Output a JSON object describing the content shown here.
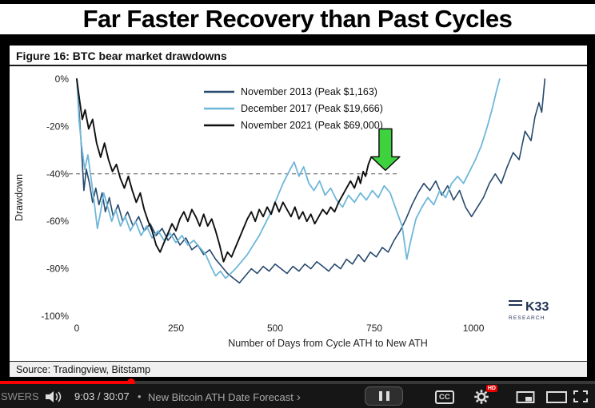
{
  "banner": {
    "title": "Far Faster Recovery than Past Cycles"
  },
  "figure": {
    "heading": "Figure 16: BTC bear market drawdowns",
    "source": "Source: Tradingview, Bitstamp",
    "logo_line1": "K33",
    "logo_line2": "RESEARCH"
  },
  "chart_data": {
    "type": "line",
    "title": "BTC bear market drawdowns",
    "xlabel": "Number of Days from Cycle ATH to New ATH",
    "ylabel": "Drawdown",
    "xlim": [
      0,
      1266
    ],
    "ylim": [
      -100,
      0
    ],
    "x_ticks": [
      0,
      250,
      500,
      750,
      1000
    ],
    "y_ticks": [
      0,
      -20,
      -40,
      -60,
      -80,
      -100
    ],
    "y_tick_suffix": "%",
    "grid": false,
    "legend_position": "top-center",
    "series": [
      {
        "name": "November 2013 (Peak $1,163)",
        "color": "#27496d",
        "width": 1.6,
        "points": [
          [
            0,
            0
          ],
          [
            6,
            -14
          ],
          [
            12,
            -30
          ],
          [
            18,
            -47
          ],
          [
            24,
            -38
          ],
          [
            32,
            -44
          ],
          [
            40,
            -52
          ],
          [
            48,
            -46
          ],
          [
            56,
            -53
          ],
          [
            64,
            -48
          ],
          [
            72,
            -56
          ],
          [
            82,
            -50
          ],
          [
            92,
            -58
          ],
          [
            104,
            -53
          ],
          [
            116,
            -60
          ],
          [
            128,
            -56
          ],
          [
            142,
            -62
          ],
          [
            156,
            -58
          ],
          [
            170,
            -64
          ],
          [
            185,
            -61
          ],
          [
            200,
            -66
          ],
          [
            215,
            -63
          ],
          [
            230,
            -68
          ],
          [
            245,
            -65
          ],
          [
            260,
            -70
          ],
          [
            275,
            -67
          ],
          [
            290,
            -72
          ],
          [
            305,
            -70
          ],
          [
            320,
            -74
          ],
          [
            335,
            -72
          ],
          [
            350,
            -76
          ],
          [
            365,
            -79
          ],
          [
            380,
            -82
          ],
          [
            395,
            -84
          ],
          [
            410,
            -86
          ],
          [
            425,
            -83
          ],
          [
            440,
            -80
          ],
          [
            455,
            -82
          ],
          [
            470,
            -79
          ],
          [
            485,
            -81
          ],
          [
            500,
            -78
          ],
          [
            515,
            -80
          ],
          [
            530,
            -82
          ],
          [
            545,
            -79
          ],
          [
            560,
            -81
          ],
          [
            575,
            -78
          ],
          [
            590,
            -80
          ],
          [
            605,
            -77
          ],
          [
            620,
            -79
          ],
          [
            635,
            -81
          ],
          [
            650,
            -78
          ],
          [
            665,
            -80
          ],
          [
            680,
            -76
          ],
          [
            695,
            -78
          ],
          [
            710,
            -74
          ],
          [
            725,
            -77
          ],
          [
            740,
            -73
          ],
          [
            755,
            -75
          ],
          [
            770,
            -71
          ],
          [
            785,
            -73
          ],
          [
            800,
            -68
          ],
          [
            815,
            -64
          ],
          [
            830,
            -59
          ],
          [
            845,
            -53
          ],
          [
            860,
            -48
          ],
          [
            875,
            -44
          ],
          [
            890,
            -47
          ],
          [
            905,
            -43
          ],
          [
            920,
            -49
          ],
          [
            935,
            -45
          ],
          [
            950,
            -51
          ],
          [
            965,
            -47
          ],
          [
            980,
            -54
          ],
          [
            995,
            -58
          ],
          [
            1010,
            -54
          ],
          [
            1025,
            -50
          ],
          [
            1040,
            -44
          ],
          [
            1055,
            -40
          ],
          [
            1070,
            -44
          ],
          [
            1085,
            -37
          ],
          [
            1100,
            -31
          ],
          [
            1115,
            -34
          ],
          [
            1130,
            -22
          ],
          [
            1145,
            -26
          ],
          [
            1155,
            -16
          ],
          [
            1165,
            -10
          ],
          [
            1172,
            -14
          ],
          [
            1180,
            0
          ]
        ]
      },
      {
        "name": "December 2017 (Peak $19,666)",
        "color": "#6fb7d9",
        "width": 1.8,
        "points": [
          [
            0,
            0
          ],
          [
            6,
            -18
          ],
          [
            12,
            -28
          ],
          [
            20,
            -38
          ],
          [
            28,
            -32
          ],
          [
            36,
            -42
          ],
          [
            44,
            -52
          ],
          [
            52,
            -63
          ],
          [
            60,
            -56
          ],
          [
            68,
            -48
          ],
          [
            78,
            -54
          ],
          [
            88,
            -60
          ],
          [
            98,
            -55
          ],
          [
            110,
            -62
          ],
          [
            122,
            -58
          ],
          [
            135,
            -64
          ],
          [
            148,
            -60
          ],
          [
            162,
            -66
          ],
          [
            176,
            -62
          ],
          [
            190,
            -67
          ],
          [
            205,
            -64
          ],
          [
            220,
            -68
          ],
          [
            235,
            -65
          ],
          [
            250,
            -69
          ],
          [
            265,
            -66
          ],
          [
            280,
            -70
          ],
          [
            295,
            -68
          ],
          [
            310,
            -71
          ],
          [
            325,
            -74
          ],
          [
            338,
            -79
          ],
          [
            350,
            -83
          ],
          [
            362,
            -81
          ],
          [
            375,
            -84
          ],
          [
            388,
            -82
          ],
          [
            400,
            -80
          ],
          [
            415,
            -77
          ],
          [
            430,
            -74
          ],
          [
            445,
            -70
          ],
          [
            460,
            -66
          ],
          [
            475,
            -61
          ],
          [
            490,
            -56
          ],
          [
            505,
            -50
          ],
          [
            520,
            -44
          ],
          [
            535,
            -39
          ],
          [
            548,
            -35
          ],
          [
            560,
            -41
          ],
          [
            572,
            -37
          ],
          [
            585,
            -44
          ],
          [
            598,
            -47
          ],
          [
            612,
            -43
          ],
          [
            626,
            -49
          ],
          [
            640,
            -46
          ],
          [
            655,
            -51
          ],
          [
            670,
            -54
          ],
          [
            685,
            -49
          ],
          [
            700,
            -52
          ],
          [
            715,
            -48
          ],
          [
            730,
            -51
          ],
          [
            745,
            -47
          ],
          [
            760,
            -50
          ],
          [
            775,
            -45
          ],
          [
            790,
            -48
          ],
          [
            805,
            -55
          ],
          [
            820,
            -62
          ],
          [
            832,
            -76
          ],
          [
            842,
            -68
          ],
          [
            855,
            -59
          ],
          [
            870,
            -54
          ],
          [
            885,
            -50
          ],
          [
            900,
            -53
          ],
          [
            915,
            -47
          ],
          [
            930,
            -50
          ],
          [
            945,
            -44
          ],
          [
            960,
            -41
          ],
          [
            975,
            -44
          ],
          [
            990,
            -39
          ],
          [
            1005,
            -34
          ],
          [
            1020,
            -28
          ],
          [
            1035,
            -20
          ],
          [
            1048,
            -12
          ],
          [
            1058,
            -5
          ],
          [
            1066,
            0
          ]
        ]
      },
      {
        "name": "November 2021 (Peak $69,000)",
        "color": "#0f0f0f",
        "width": 1.9,
        "points": [
          [
            0,
            0
          ],
          [
            7,
            -9
          ],
          [
            14,
            -17
          ],
          [
            21,
            -13
          ],
          [
            30,
            -21
          ],
          [
            40,
            -17
          ],
          [
            50,
            -27
          ],
          [
            60,
            -33
          ],
          [
            70,
            -27
          ],
          [
            80,
            -34
          ],
          [
            90,
            -39
          ],
          [
            100,
            -36
          ],
          [
            110,
            -42
          ],
          [
            120,
            -46
          ],
          [
            130,
            -41
          ],
          [
            140,
            -47
          ],
          [
            150,
            -52
          ],
          [
            160,
            -48
          ],
          [
            170,
            -55
          ],
          [
            180,
            -60
          ],
          [
            190,
            -64
          ],
          [
            200,
            -70
          ],
          [
            210,
            -73
          ],
          [
            220,
            -69
          ],
          [
            230,
            -65
          ],
          [
            240,
            -61
          ],
          [
            250,
            -64
          ],
          [
            260,
            -59
          ],
          [
            270,
            -56
          ],
          [
            280,
            -60
          ],
          [
            290,
            -55
          ],
          [
            300,
            -58
          ],
          [
            310,
            -62
          ],
          [
            320,
            -57
          ],
          [
            330,
            -62
          ],
          [
            340,
            -59
          ],
          [
            350,
            -64
          ],
          [
            360,
            -70
          ],
          [
            370,
            -77
          ],
          [
            380,
            -73
          ],
          [
            390,
            -75
          ],
          [
            400,
            -71
          ],
          [
            410,
            -67
          ],
          [
            420,
            -63
          ],
          [
            430,
            -59
          ],
          [
            440,
            -56
          ],
          [
            450,
            -60
          ],
          [
            460,
            -55
          ],
          [
            470,
            -58
          ],
          [
            480,
            -54
          ],
          [
            490,
            -57
          ],
          [
            500,
            -52
          ],
          [
            510,
            -56
          ],
          [
            520,
            -52
          ],
          [
            530,
            -55
          ],
          [
            540,
            -58
          ],
          [
            550,
            -54
          ],
          [
            560,
            -59
          ],
          [
            570,
            -56
          ],
          [
            580,
            -60
          ],
          [
            590,
            -57
          ],
          [
            600,
            -61
          ],
          [
            610,
            -58
          ],
          [
            620,
            -55
          ],
          [
            630,
            -57
          ],
          [
            640,
            -54
          ],
          [
            650,
            -56
          ],
          [
            660,
            -52
          ],
          [
            670,
            -49
          ],
          [
            680,
            -46
          ],
          [
            690,
            -43
          ],
          [
            700,
            -46
          ],
          [
            710,
            -41
          ],
          [
            715,
            -44
          ],
          [
            722,
            -39
          ],
          [
            728,
            -41
          ],
          [
            735,
            -36
          ],
          [
            742,
            -33
          ]
        ]
      }
    ],
    "annotations": {
      "dashed_hline": {
        "y": -40,
        "x_start": -20,
        "x_end": 810
      },
      "arrow_marker": {
        "x": 778,
        "y": -38.5,
        "direction": "down",
        "color": "#3fd23f"
      }
    }
  },
  "player": {
    "watermark": "SWERS",
    "time": "9:03 / 30:07",
    "separator": "•",
    "chapter": "New Bitcoin ATH Date Forecast",
    "chevron": "›",
    "cc_label": "CC",
    "hd_badge": "HD",
    "progress_pct": 22,
    "accent_color": "#ff0000"
  }
}
